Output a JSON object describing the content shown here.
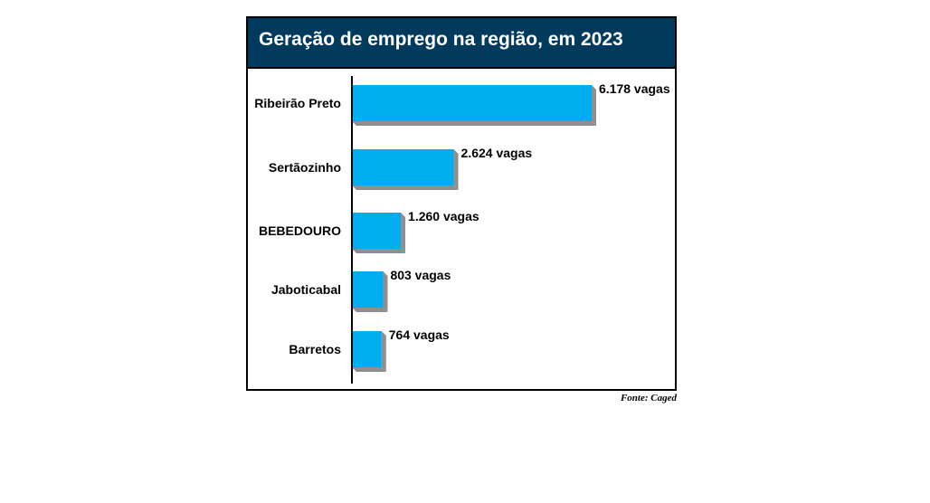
{
  "source_note": "Fonte: Caged",
  "colors": {
    "title_background": "#003a5c",
    "bar": "#00adef",
    "bar_shadow": "#8f8f8f"
  },
  "chart_data": {
    "type": "bar",
    "orientation": "horizontal",
    "title": "Geração de emprego na região, em 2023",
    "xlabel": "",
    "ylabel": "",
    "categories": [
      "Ribeirão Preto",
      "Sertãozinho",
      "BEBEDOURO",
      "Jaboticabal",
      "Barretos"
    ],
    "values": [
      6178,
      2624,
      1260,
      803,
      764
    ],
    "data_labels": [
      "6.178 vagas",
      "2.624 vagas",
      "1.260 vagas",
      "803 vagas",
      "764 vagas"
    ],
    "xlim": [
      0,
      6178
    ],
    "grid": false,
    "legend": "none"
  }
}
